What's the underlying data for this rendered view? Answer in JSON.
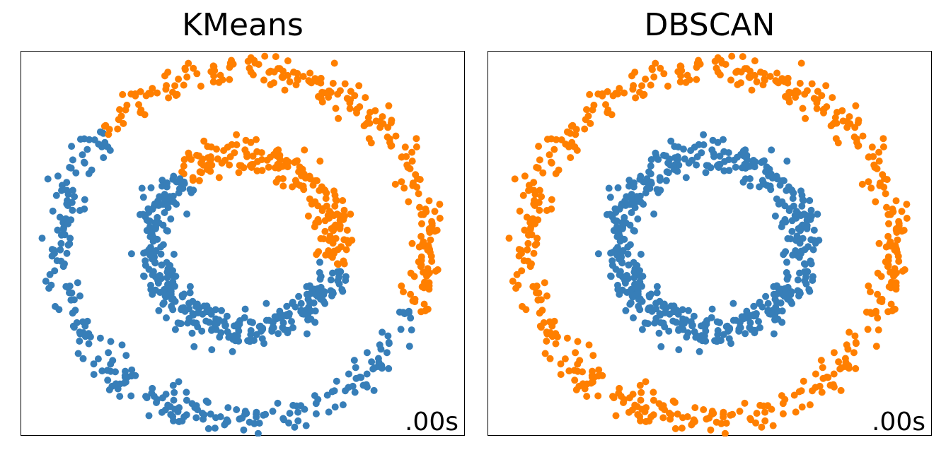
{
  "colors": {
    "cluster_0": "#377eb8",
    "cluster_1": "#ff7f00"
  },
  "chart_data": [
    {
      "type": "scatter",
      "title": "KMeans",
      "annotation": ".00s",
      "dataset": "two concentric noisy circles",
      "outer_circle": {
        "radius": 1.0,
        "n_points": 500
      },
      "inner_circle": {
        "radius": 0.5,
        "n_points": 500
      },
      "clustering": "linear split: points with y > 0.17 - 0.62*x are cluster_1 (orange), else cluster_0 (blue)",
      "split_line": {
        "slope": -0.62,
        "intercept": 0.17
      },
      "xlim": [
        -1.2,
        1.2
      ],
      "ylim": [
        -1.1,
        1.1
      ],
      "grid": false,
      "axes": "no ticks"
    },
    {
      "type": "scatter",
      "title": "DBSCAN",
      "annotation": ".00s",
      "dataset": "two concentric noisy circles",
      "outer_circle": {
        "radius": 1.0,
        "n_points": 500
      },
      "inner_circle": {
        "radius": 0.5,
        "n_points": 500
      },
      "clustering": "outer ring = cluster_1 (orange), inner ring = cluster_0 (blue)",
      "xlim": [
        -1.2,
        1.2
      ],
      "ylim": [
        -1.1,
        1.1
      ],
      "grid": false,
      "axes": "no ticks"
    }
  ]
}
